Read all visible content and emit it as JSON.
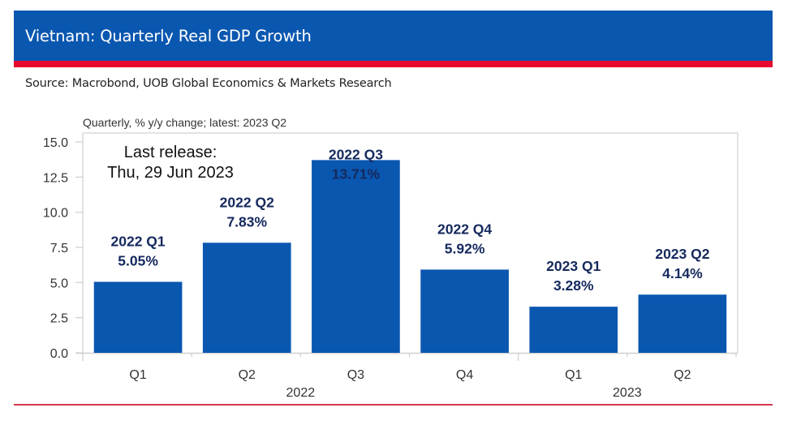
{
  "header": {
    "title": "Vietnam: Quarterly Real GDP Growth",
    "brand_blue": "#0a57b0",
    "brand_red": "#e8082f"
  },
  "source": "Source: Macrobond, UOB Global Economics & Markets Research",
  "subtitle": "Quarterly, % y/y change; latest: 2023 Q2",
  "annotation": {
    "line1": "Last release:",
    "line2": "Thu, 29 Jun 2023"
  },
  "chart_data": {
    "type": "bar",
    "title": "Vietnam: Quarterly Real GDP Growth",
    "subtitle": "Quarterly, % y/y change; latest: 2023 Q2",
    "xlabel": "",
    "ylabel": "",
    "categories": [
      "Q1",
      "Q2",
      "Q3",
      "Q4",
      "Q1",
      "Q2"
    ],
    "category_groups": [
      {
        "label": "2022",
        "span": [
          0,
          3
        ]
      },
      {
        "label": "2023",
        "span": [
          4,
          5
        ]
      }
    ],
    "values": [
      5.05,
      7.83,
      13.71,
      5.92,
      3.28,
      4.14
    ],
    "data_labels": [
      {
        "period": "2022 Q1",
        "value": "5.05%"
      },
      {
        "period": "2022 Q2",
        "value": "7.83%"
      },
      {
        "period": "2022 Q3",
        "value": "13.71%"
      },
      {
        "period": "2022 Q4",
        "value": "5.92%"
      },
      {
        "period": "2023 Q1",
        "value": "3.28%"
      },
      {
        "period": "2023 Q2",
        "value": "4.14%"
      }
    ],
    "ylim": [
      0,
      15
    ],
    "yticks": [
      "0.0",
      "2.5",
      "5.0",
      "7.5",
      "10.0",
      "12.5",
      "15.0"
    ],
    "ytick_values": [
      0,
      2.5,
      5,
      7.5,
      10,
      12.5,
      15
    ],
    "bar_color": "#0a57b0",
    "label_color": "#15295e",
    "grid": false,
    "legend": "none"
  }
}
